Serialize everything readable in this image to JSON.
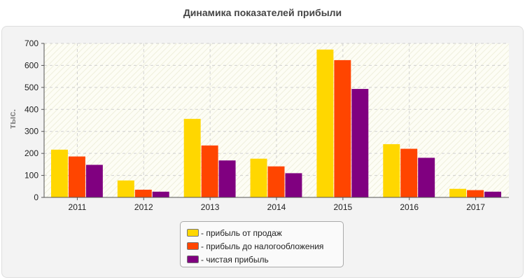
{
  "chart_data": {
    "type": "bar",
    "title": "Динамика показателей прибыли",
    "ylabel": "тыс.",
    "xlabel": "",
    "categories": [
      "2011",
      "2012",
      "2013",
      "2014",
      "2015",
      "2016",
      "2017"
    ],
    "ylim": [
      0,
      700
    ],
    "yticks": [
      0,
      100,
      200,
      300,
      400,
      500,
      600,
      700
    ],
    "grid": true,
    "legend_position": "bottom",
    "series": [
      {
        "name": "- прибыль от продаж",
        "color": "#ffd700",
        "values": [
          217,
          77,
          357,
          176,
          672,
          242,
          39
        ]
      },
      {
        "name": "- прибыль до налогообложения",
        "color": "#ff4500",
        "values": [
          186,
          35,
          236,
          141,
          624,
          221,
          33
        ]
      },
      {
        "name": "- чистая прибыль",
        "color": "#800080",
        "values": [
          148,
          26,
          168,
          110,
          493,
          180,
          26
        ]
      }
    ]
  }
}
